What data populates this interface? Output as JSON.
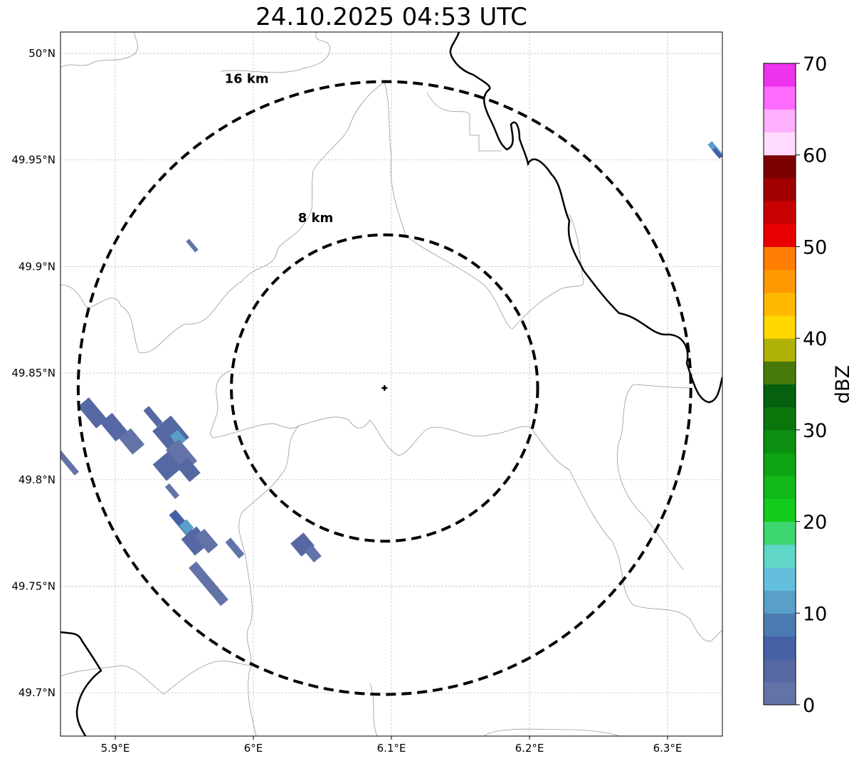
{
  "title": "24.10.2025 04:53 UTC",
  "map": {
    "lon_range": [
      5.86,
      6.34
    ],
    "lat_range": [
      49.68,
      50.01
    ],
    "lon_ticks": [
      {
        "v": 5.9,
        "label": "5.9°E"
      },
      {
        "v": 6.0,
        "label": "6°E"
      },
      {
        "v": 6.1,
        "label": "6.1°E"
      },
      {
        "v": 6.2,
        "label": "6.2°E"
      },
      {
        "v": 6.3,
        "label": "6.3°E"
      }
    ],
    "lat_ticks": [
      {
        "v": 50.0,
        "label": "50°N"
      },
      {
        "v": 49.95,
        "label": "49.95°N"
      },
      {
        "v": 49.9,
        "label": "49.9°N"
      },
      {
        "v": 49.85,
        "label": "49.85°N"
      },
      {
        "v": 49.8,
        "label": "49.8°N"
      },
      {
        "v": 49.75,
        "label": "49.75°N"
      },
      {
        "v": 49.7,
        "label": "49.7°N"
      }
    ],
    "radar_center": {
      "lon": 6.095,
      "lat": 49.843
    },
    "range_rings": [
      {
        "km": 8,
        "label": "8 km"
      },
      {
        "km": 16,
        "label": "16 km"
      }
    ]
  },
  "colorbar": {
    "label": "dBZ",
    "min": 0,
    "max": 70,
    "ticks": [
      0,
      10,
      20,
      30,
      40,
      50,
      60,
      70
    ],
    "colors": [
      "#6373a8",
      "#5568a3",
      "#4660a5",
      "#4c7bb2",
      "#58a0c9",
      "#64bfdd",
      "#60d6c6",
      "#3ed66e",
      "#12cc1e",
      "#10b818",
      "#0ea414",
      "#0c8e10",
      "#0a760c",
      "#056010",
      "#487a0a",
      "#b0b208",
      "#ffd800",
      "#ffb800",
      "#ff9900",
      "#ff7d00",
      "#e80000",
      "#c80000",
      "#a00000",
      "#7c0000",
      "#ffdcff",
      "#ffb0ff",
      "#ff6aff",
      "#ee33ee"
    ]
  }
}
